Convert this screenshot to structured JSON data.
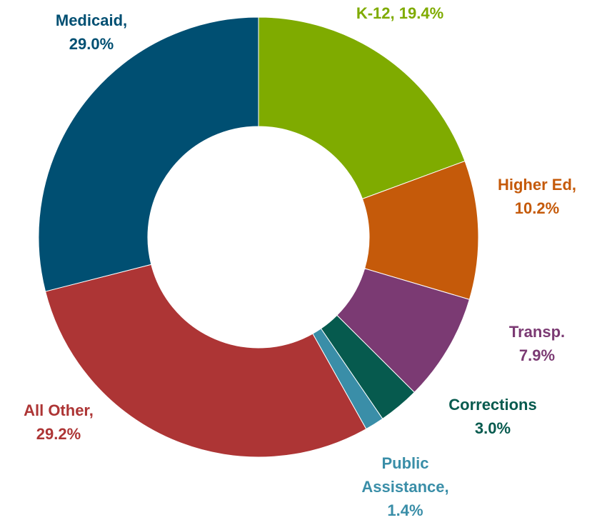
{
  "chart_data": {
    "type": "pie",
    "categories": [
      "K-12,",
      "Higher Ed,",
      "Transp.",
      "Corrections",
      "Public Assistance,",
      "All Other,",
      "Medicaid,"
    ],
    "values": [
      19.4,
      10.2,
      7.9,
      3.0,
      1.4,
      29.2,
      29.0
    ],
    "value_labels": [
      "19.4%",
      "10.2%",
      "7.9%",
      "3.0%",
      "1.4%",
      "29.2%",
      "29.0%"
    ],
    "colors": [
      "#7fab00",
      "#c55a0a",
      "#7b3a73",
      "#065a4e",
      "#3a8ea8",
      "#ad3535",
      "#004f72"
    ]
  }
}
